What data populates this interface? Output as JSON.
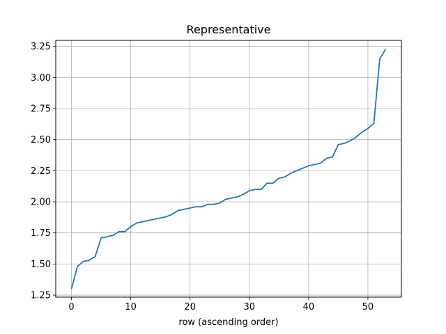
{
  "chart_data": {
    "type": "line",
    "title": "Representative",
    "xlabel": "row (ascending order)",
    "ylabel": "",
    "xlim": [
      -2.65,
      55.65
    ],
    "ylim": [
      1.2335,
      3.2985
    ],
    "x_ticks": [
      0,
      10,
      20,
      30,
      40,
      50
    ],
    "y_ticks": [
      1.25,
      1.5,
      1.75,
      2.0,
      2.25,
      2.5,
      2.75,
      3.0,
      3.25
    ],
    "x_tick_labels": [
      "0",
      "10",
      "20",
      "30",
      "40",
      "50"
    ],
    "y_tick_labels": [
      "1.25",
      "1.50",
      "1.75",
      "2.00",
      "2.25",
      "2.50",
      "2.75",
      "3.00",
      "3.25"
    ],
    "grid": true,
    "series": [
      {
        "color": "#1f77b4",
        "x": [
          0,
          1,
          2,
          3,
          4,
          5,
          6,
          7,
          8,
          9,
          10,
          11,
          12,
          13,
          14,
          15,
          16,
          17,
          18,
          19,
          20,
          21,
          22,
          23,
          24,
          25,
          26,
          27,
          28,
          29,
          30,
          31,
          32,
          33,
          34,
          35,
          36,
          37,
          38,
          39,
          40,
          41,
          42,
          43,
          44,
          45,
          46,
          47,
          48,
          49,
          50,
          51,
          52,
          53
        ],
        "values": [
          1.3,
          1.48,
          1.52,
          1.53,
          1.56,
          1.71,
          1.72,
          1.73,
          1.76,
          1.76,
          1.8,
          1.83,
          1.84,
          1.85,
          1.86,
          1.87,
          1.88,
          1.9,
          1.93,
          1.94,
          1.95,
          1.96,
          1.96,
          1.98,
          1.98,
          1.99,
          2.02,
          2.03,
          2.04,
          2.06,
          2.09,
          2.1,
          2.1,
          2.15,
          2.15,
          2.19,
          2.2,
          2.23,
          2.25,
          2.27,
          2.29,
          2.3,
          2.31,
          2.35,
          2.36,
          2.46,
          2.47,
          2.49,
          2.52,
          2.56,
          2.59,
          2.63,
          3.15,
          3.23
        ]
      }
    ]
  }
}
